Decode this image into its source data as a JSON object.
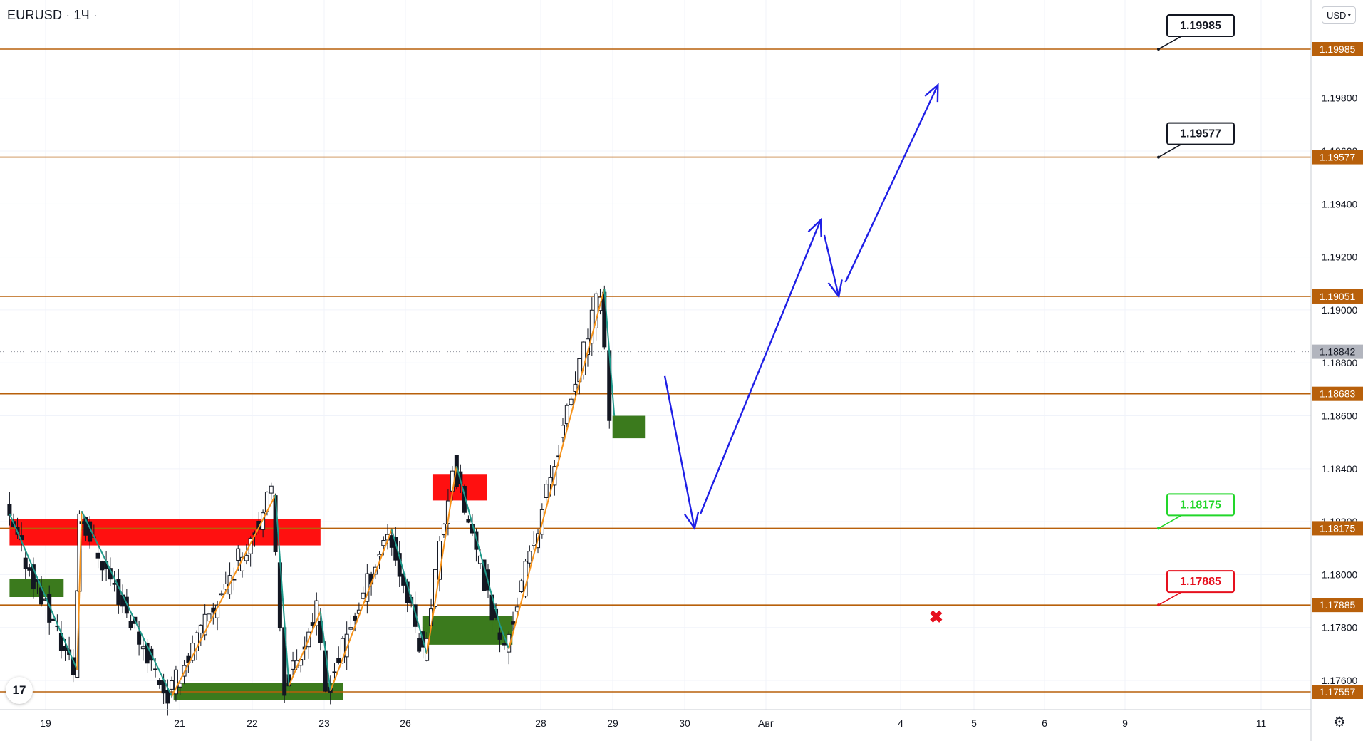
{
  "header": {
    "symbol": "EURUSD",
    "interval": "1Ч",
    "separator": "·"
  },
  "currency_button": {
    "label": "USD",
    "icon": "chevron-down-icon"
  },
  "logo": {
    "text": "17",
    "icon": "tradingview-logo"
  },
  "settings": {
    "icon": "gear-icon"
  },
  "colors": {
    "level_line": "#b8600b",
    "price_tag_bg": "#b8600b",
    "bull_candle": "#ffffff",
    "bear_candle": "#131722",
    "supply_zone": "#ff1010",
    "demand_zone": "#3b7a1d",
    "zigzag_up": "#f7931a",
    "zigzag_down": "#1e998a",
    "forecast": "#1f1fe6",
    "target_green": "#22d62a",
    "target_red": "#e6101e",
    "last_price_tag": "#b2b5be"
  },
  "chart_data": {
    "type": "candlestick",
    "symbol": "EURUSD",
    "interval": "1Ч",
    "y_axis": {
      "ticks": [
        "1.17600",
        "1.17800",
        "1.18000",
        "1.18200",
        "1.18400",
        "1.18600",
        "1.18800",
        "1.19000",
        "1.19200",
        "1.19400",
        "1.19600",
        "1.19800"
      ],
      "ylim": [
        1.1733,
        1.2015
      ]
    },
    "x_axis": {
      "ticks": [
        "19",
        "21",
        "22",
        "23",
        "26",
        "28",
        "29",
        "30",
        "Авг",
        "4",
        "5",
        "6",
        "9",
        "11"
      ]
    },
    "horizontal_levels": [
      {
        "price": 1.19985,
        "label": "1.19985"
      },
      {
        "price": 1.19577,
        "label": "1.19577"
      },
      {
        "price": 1.19051,
        "label": "1.19051"
      },
      {
        "price": 1.18683,
        "label": "1.18683"
      },
      {
        "price": 1.18175,
        "label": "1.18175"
      },
      {
        "price": 1.17885,
        "label": "1.17885"
      },
      {
        "price": 1.17557,
        "label": "1.17557"
      }
    ],
    "last_price": {
      "price": 1.18842,
      "label": "1.18842"
    },
    "callouts": [
      {
        "label": "1.19985",
        "price": 1.19985,
        "style": "black"
      },
      {
        "label": "1.19577",
        "price": 1.19577,
        "style": "black"
      },
      {
        "label": "1.18175",
        "price": 1.18175,
        "style": "green"
      },
      {
        "label": "1.17885",
        "price": 1.17885,
        "style": "red"
      }
    ],
    "supply_zones": [
      {
        "x_start": -4.0,
        "x_end": 30.5,
        "top": 1.1821,
        "bottom": 1.1811
      },
      {
        "x_start": 43.0,
        "x_end": 49.0,
        "top": 1.1838,
        "bottom": 1.1828
      }
    ],
    "demand_zones": [
      {
        "x_start": -4.0,
        "x_end": 2.0,
        "top": 1.17985,
        "bottom": 1.17915
      },
      {
        "x_start": 14.2,
        "x_end": 33.0,
        "top": 1.1759,
        "bottom": 1.17527
      },
      {
        "x_start": 41.8,
        "x_end": 51.8,
        "top": 1.17845,
        "bottom": 1.17735
      },
      {
        "x_start": 62.9,
        "x_end": 66.5,
        "top": 1.186,
        "bottom": 1.18515
      }
    ],
    "zigzag": [
      {
        "x": -4.0,
        "y": 1.1823
      },
      {
        "x": 3.5,
        "y": 1.1764
      },
      {
        "x": 4.0,
        "y": 1.1824
      },
      {
        "x": 14.0,
        "y": 1.1754
      },
      {
        "x": 25.5,
        "y": 1.183
      },
      {
        "x": 27.0,
        "y": 1.1758
      },
      {
        "x": 30.5,
        "y": 1.1786
      },
      {
        "x": 31.6,
        "y": 1.1756
      },
      {
        "x": 38.4,
        "y": 1.1817
      },
      {
        "x": 42.3,
        "y": 1.177
      },
      {
        "x": 45.6,
        "y": 1.1841
      },
      {
        "x": 50.4,
        "y": 1.1781
      },
      {
        "x": 51.4,
        "y": 1.1772
      },
      {
        "x": 62.0,
        "y": 1.1908
      },
      {
        "x": 63.1,
        "y": 1.186
      }
    ],
    "forecast_path": [
      {
        "x": 68.7,
        "y": 1.1875
      },
      {
        "x": 72.0,
        "y": 1.18175
      },
      {
        "x": 86.0,
        "y": 1.1934
      },
      {
        "x": 88.0,
        "y": 1.19051
      },
      {
        "x": 99.0,
        "y": 1.1985
      }
    ],
    "stop_marker": {
      "x": 98.8,
      "y": 1.1784,
      "label": "✖"
    },
    "candles": []
  }
}
